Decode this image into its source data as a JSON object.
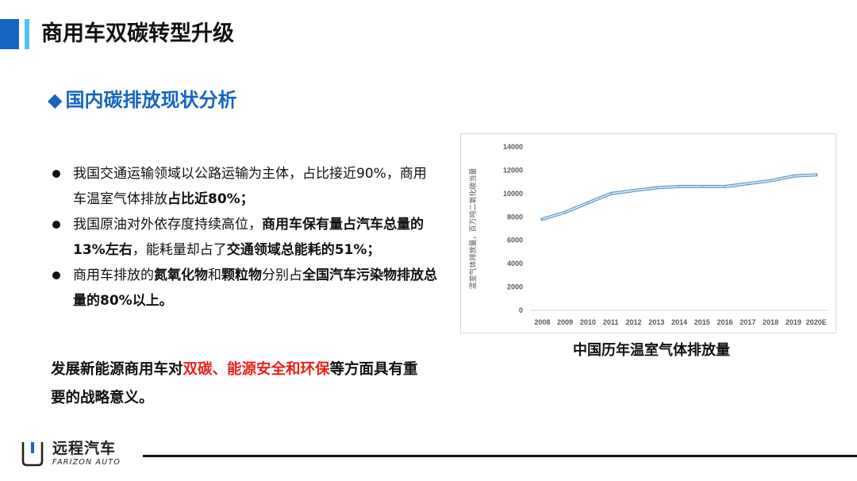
{
  "header": {
    "title": "商用车双碳转型升级",
    "colors": {
      "accent_dark": "#1565c0",
      "accent_light": "#4fc3f7"
    }
  },
  "section": {
    "icon": "diamond-icon",
    "title": "国内碳排放现状分析"
  },
  "bullets": [
    {
      "parts": [
        {
          "text": "我国交通运输领域以公路运输为主体，占比接近90%，商用车温室气体排放",
          "bold": false
        },
        {
          "text": "占比近80%；",
          "bold": true
        }
      ]
    },
    {
      "parts": [
        {
          "text": "我国原油对外依存度持续高位，",
          "bold": false
        },
        {
          "text": "商用车保有量占汽车总量的13%左右",
          "bold": true
        },
        {
          "text": "，能耗量却占了",
          "bold": false
        },
        {
          "text": "交通领域总能耗的51%；",
          "bold": true
        }
      ]
    },
    {
      "parts": [
        {
          "text": "商用车排放的",
          "bold": false
        },
        {
          "text": "氮氧化物",
          "bold": true
        },
        {
          "text": "和",
          "bold": false
        },
        {
          "text": "颗粒物",
          "bold": true
        },
        {
          "text": "分别占",
          "bold": false
        },
        {
          "text": "全国汽车污染物排放总量的80%以上。",
          "bold": true
        }
      ]
    }
  ],
  "conclusion": {
    "parts": [
      {
        "text": "发展新能源商用车对",
        "red": false
      },
      {
        "text": "双碳、能源安全和环保",
        "red": true
      },
      {
        "text": "等方面具有重要的战略意义。",
        "red": false
      }
    ],
    "highlight_color": "#e8211d"
  },
  "chart_data": {
    "type": "line",
    "title": "中国历年温室气体排放量",
    "ylabel": "温室气体排放量，百万吨二氧化碳当量",
    "xlabel": "",
    "categories": [
      "2008",
      "2009",
      "2010",
      "2011",
      "2012",
      "2013",
      "2014",
      "2015",
      "2016",
      "2017",
      "2018",
      "2019",
      "2020E"
    ],
    "yticks": [
      "0",
      "2000",
      "4000",
      "6000",
      "8000",
      "10000",
      "12000",
      "14000"
    ],
    "ylim": [
      0,
      14000
    ],
    "grid": false,
    "legend": "none",
    "series": [
      {
        "color": "#7fb3d5",
        "values": [
          7800,
          8400,
          9200,
          10000,
          10250,
          10500,
          10600,
          10600,
          10600,
          10850,
          11100,
          11500,
          11600
        ]
      }
    ]
  },
  "footer": {
    "logo_icon": "farizon-logo-icon",
    "brand_cn": "远程汽车",
    "brand_en": "FARIZON AUTO"
  }
}
